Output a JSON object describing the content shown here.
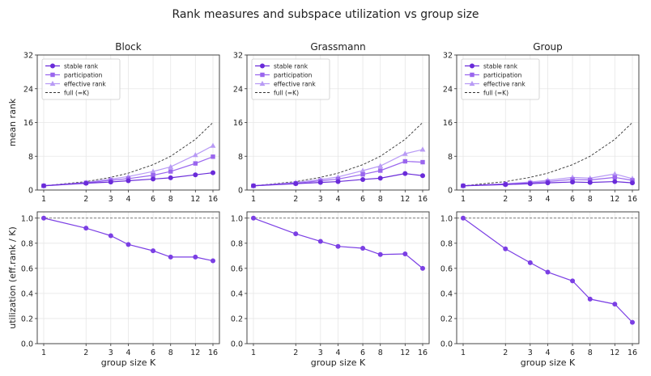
{
  "suptitle": "Rank measures and subspace utilization vs group size",
  "chart_data": {
    "type": "line",
    "x": [
      1,
      2,
      3,
      4,
      6,
      8,
      12,
      16
    ],
    "x_scale": "log2",
    "x_ticklabels": [
      "1",
      "2",
      "3",
      "4",
      "6",
      "8",
      "12",
      "16"
    ],
    "xlabel": "group size K",
    "rank_ylabel": "mean rank",
    "util_ylabel": "utilization  (eff.rank / K)",
    "rank_ylim": [
      0,
      32
    ],
    "rank_yticks": [
      0,
      8,
      16,
      24,
      32
    ],
    "util_ylim": [
      0,
      1.05
    ],
    "util_yticks": [
      0.0,
      0.2,
      0.4,
      0.6,
      0.8,
      1.0
    ],
    "util_ytick_labels": [
      "0.0",
      "0.2",
      "0.4",
      "0.6",
      "0.8",
      "1.0"
    ],
    "legend_placement": "top-left",
    "grid": true,
    "panels": [
      {
        "title": "Block",
        "series": [
          {
            "name": "stable rank",
            "values": [
              1.0,
              1.6,
              1.9,
              2.2,
              2.6,
              2.9,
              3.6,
              4.1
            ]
          },
          {
            "name": "participation",
            "values": [
              1.0,
              1.7,
              2.3,
              2.7,
              3.5,
              4.4,
              6.3,
              7.9
            ]
          },
          {
            "name": "effective rank",
            "values": [
              1.0,
              1.8,
              2.6,
              3.2,
              4.4,
              5.5,
              8.3,
              10.5
            ]
          },
          {
            "name": "full (=K)",
            "values": [
              1,
              2,
              3,
              4,
              6,
              8,
              12,
              16
            ]
          }
        ],
        "utilization": [
          1.0,
          0.92,
          0.86,
          0.79,
          0.74,
          0.69,
          0.69,
          0.66
        ]
      },
      {
        "title": "Grassmann",
        "series": [
          {
            "name": "stable rank",
            "values": [
              1.0,
              1.5,
              1.8,
              2.0,
              2.5,
              2.8,
              3.9,
              3.4
            ]
          },
          {
            "name": "participation",
            "values": [
              1.0,
              1.6,
              2.2,
              2.6,
              3.7,
              4.6,
              6.8,
              6.6
            ]
          },
          {
            "name": "effective rank",
            "values": [
              1.0,
              1.8,
              2.5,
              3.1,
              4.6,
              5.7,
              8.6,
              9.6
            ]
          },
          {
            "name": "full (=K)",
            "values": [
              1,
              2,
              3,
              4,
              6,
              8,
              12,
              16
            ]
          }
        ],
        "utilization": [
          1.0,
          0.875,
          0.815,
          0.775,
          0.76,
          0.71,
          0.715,
          0.6
        ]
      },
      {
        "title": "Group",
        "series": [
          {
            "name": "stable rank",
            "values": [
              1.0,
              1.3,
              1.5,
              1.7,
              1.9,
              1.8,
              2.0,
              1.7
            ]
          },
          {
            "name": "participation",
            "values": [
              1.0,
              1.4,
              1.7,
              2.0,
              2.5,
              2.4,
              3.0,
              2.3
            ]
          },
          {
            "name": "effective rank",
            "values": [
              1.0,
              1.5,
              1.9,
              2.3,
              3.0,
              2.8,
              3.8,
              2.7
            ]
          },
          {
            "name": "full (=K)",
            "values": [
              1,
              2,
              3,
              4,
              6,
              8,
              12,
              16
            ]
          }
        ],
        "utilization": [
          1.0,
          0.755,
          0.645,
          0.57,
          0.5,
          0.355,
          0.315,
          0.17
        ]
      }
    ],
    "colors": {
      "stable rank": "#6a2bd9",
      "participation": "#9a66ee",
      "effective rank": "#b89af5",
      "full (=K)": "#333333",
      "utilization": "#7b3fe4"
    }
  }
}
